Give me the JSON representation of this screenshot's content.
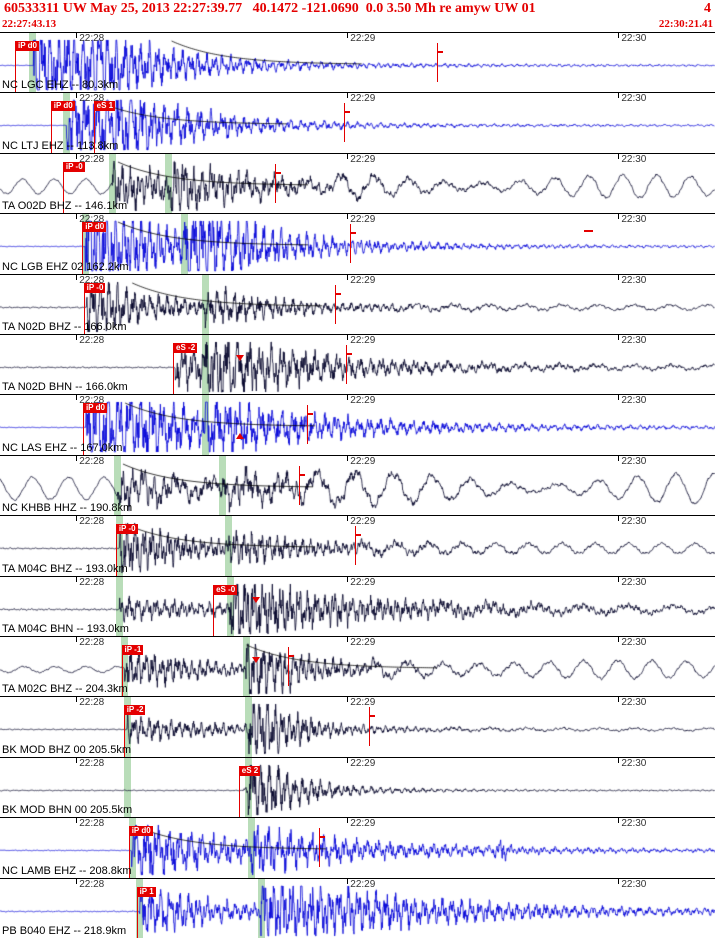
{
  "colors": {
    "header_red": "#e40000",
    "pick_red": "#e40000",
    "band_green": "#b9ddb9",
    "trace_blue": "#0000d8",
    "trace_dark": "#000028"
  },
  "header": {
    "title": "60533311 UW May 25, 2013 22:27:39.77   40.1472 -121.0690  0.0 3.50 Mh re amyw UW 01",
    "right_number": "4",
    "window_start": "22:27:43.13",
    "window_end": "22:30:21.41"
  },
  "minute_marks": [
    {
      "f": 0.1066,
      "label": "22:28"
    },
    {
      "f": 0.4857,
      "label": "22:29"
    },
    {
      "f": 0.8648,
      "label": "22:30"
    }
  ],
  "traces": [
    {
      "label": "NC LGC EHZ -- 80.3km",
      "color": "blue",
      "seed": 3,
      "noise": 0.012,
      "preLP": 0,
      "onset": 0.047,
      "burst": 2.6,
      "decay": 0.085,
      "s_x": 0.12,
      "s_amp": 0.9,
      "s_decay": 0.11,
      "lp": 0,
      "lp_start": 0.5,
      "flags": [
        {
          "t": "iP d0",
          "x": 0.021
        }
      ],
      "amp": [
        0.611
      ],
      "green": [
        0.045
      ],
      "markers": [],
      "curve": 0.24
    },
    {
      "label": "NC LTJ EHZ -- 113.8km",
      "color": "blue",
      "seed": 7,
      "noise": 0.012,
      "preLP": 0,
      "onset": 0.093,
      "burst": 2.1,
      "decay": 0.095,
      "s_x": 0.16,
      "s_amp": 0.7,
      "s_decay": 0.1,
      "lp": 0,
      "lp_start": 0.5,
      "flags": [
        {
          "t": "iP d0",
          "x": 0.071
        },
        {
          "t": "eS 1",
          "x": 0.131
        }
      ],
      "amp": [
        0.481
      ],
      "green": [
        0.093
      ],
      "markers": [],
      "curve": 0.135
    },
    {
      "label": "TA O02D BHZ -- 146.1km",
      "color": "dark",
      "seed": 11,
      "noise": 0.03,
      "preLP": 0.3,
      "onset": 0.157,
      "burst": 0.95,
      "decay": 0.1,
      "s_x": 0.235,
      "s_amp": 0.65,
      "s_decay": 0.12,
      "lp": 0.3,
      "lp_start": 0.47,
      "flags": [
        {
          "t": "iP -0",
          "x": 0.088
        }
      ],
      "amp": [
        0.384
      ],
      "green": [
        0.157,
        0.235
      ],
      "markers": [],
      "curve": 0.165
    },
    {
      "label": "NC LGB EHZ 02 162.2km",
      "color": "blue",
      "seed": 13,
      "noise": 0.012,
      "preLP": 0,
      "onset": 0.119,
      "burst": 2.5,
      "decay": 0.085,
      "s_x": 0.258,
      "s_amp": 1.7,
      "s_decay": 0.1,
      "lp": 0,
      "lp_start": 0.5,
      "flags": [
        {
          "t": "iP d0",
          "x": 0.115
        }
      ],
      "amp": [
        0.489
      ],
      "green": [
        0.119,
        0.258
      ],
      "markers": [
        {
          "type": "dash",
          "x": 0.823
        }
      ],
      "curve": 0.165
    },
    {
      "label": "TA N02D BHZ -- 166.0km",
      "color": "dark",
      "seed": 17,
      "noise": 0.025,
      "preLP": 0,
      "onset": 0.121,
      "burst": 1.25,
      "decay": 0.09,
      "s_x": 0.287,
      "s_amp": 0.55,
      "s_decay": 0.12,
      "lp": 0.1,
      "lp_start": 0.55,
      "flags": [
        {
          "t": "iP -0",
          "x": 0.117
        }
      ],
      "amp": [
        0.468
      ],
      "green": [
        0.287
      ],
      "markers": [],
      "curve": 0.185
    },
    {
      "label": "TA N02D BHN -- 166.0km",
      "color": "dark",
      "seed": 19,
      "noise": 0.025,
      "preLP": 0,
      "onset": 0.245,
      "burst": 0.85,
      "decay": 0.15,
      "s_x": 0.287,
      "s_amp": 0.85,
      "s_decay": 0.15,
      "lp": 0.08,
      "lp_start": 0.6,
      "flags": [
        {
          "t": "eS -2",
          "x": 0.242
        }
      ],
      "amp": [
        0.484
      ],
      "green": [
        0.287
      ],
      "markers": [
        {
          "type": "tri-down",
          "x": 0.335
        }
      ],
      "curve": 0
    },
    {
      "label": "NC LAS EHZ -- 167.0km",
      "color": "blue",
      "seed": 23,
      "noise": 0.012,
      "preLP": 0,
      "onset": 0.12,
      "burst": 2.0,
      "decay": 0.15,
      "s_x": 0.287,
      "s_amp": 0.6,
      "s_decay": 0.15,
      "lp": 0,
      "lp_start": 0.5,
      "flags": [
        {
          "t": "iP d0",
          "x": 0.116
        }
      ],
      "amp": [
        0.43
      ],
      "green": [
        0.287
      ],
      "markers": [
        {
          "type": "tri-up",
          "x": 0.335
        }
      ],
      "curve": 0.175
    },
    {
      "label": "NC KHBB HHZ -- 190.8km",
      "color": "dark",
      "seed": 29,
      "noise": 0.04,
      "preLP": 0.45,
      "onset": 0.164,
      "burst": 0.8,
      "decay": 0.12,
      "s_x": 0.311,
      "s_amp": 0.45,
      "s_decay": 0.12,
      "lp": 0.38,
      "lp_start": 0.42,
      "flags": [],
      "amp": [
        0.418
      ],
      "green": [
        0.164,
        0.311
      ],
      "markers": [],
      "curve": 0.172
    },
    {
      "label": "TA M04C BHZ -- 193.0km",
      "color": "dark",
      "seed": 31,
      "noise": 0.025,
      "preLP": 0,
      "onset": 0.167,
      "burst": 1.1,
      "decay": 0.1,
      "s_x": 0.319,
      "s_amp": 0.5,
      "s_decay": 0.12,
      "lp": 0.2,
      "lp_start": 0.5,
      "flags": [
        {
          "t": "iP -0",
          "x": 0.162
        }
      ],
      "amp": [
        0.496
      ],
      "green": [
        0.167,
        0.319
      ],
      "markers": [],
      "curve": 0.175
    },
    {
      "label": "TA M04C BHN -- 193.0km",
      "color": "dark",
      "seed": 37,
      "noise": 0.03,
      "preLP": 0,
      "onset": 0.167,
      "burst": 0.45,
      "decay": 0.2,
      "s_x": 0.321,
      "s_amp": 1.05,
      "s_decay": 0.18,
      "lp": 0.14,
      "lp_start": 0.6,
      "flags": [
        {
          "t": "eS -0",
          "x": 0.298
        }
      ],
      "amp": [],
      "green": [
        0.167,
        0.321
      ],
      "markers": [
        {
          "type": "tri-down",
          "x": 0.358
        }
      ],
      "curve": 0
    },
    {
      "label": "TA M02C BHZ -- 204.3km",
      "color": "dark",
      "seed": 41,
      "noise": 0.03,
      "preLP": 0.12,
      "onset": 0.174,
      "burst": 0.85,
      "decay": 0.1,
      "s_x": 0.344,
      "s_amp": 1.25,
      "s_decay": 0.07,
      "lp": 0.3,
      "lp_start": 0.52,
      "flags": [
        {
          "t": "iP -1",
          "x": 0.17
        }
      ],
      "amp": [
        0.403
      ],
      "green": [
        0.174,
        0.344
      ],
      "markers": [
        {
          "type": "tri-down",
          "x": 0.358
        }
      ],
      "curve": 0.345
    },
    {
      "label": "BK MOD BHZ 00 205.5km",
      "color": "dark",
      "seed": 43,
      "noise": 0.018,
      "preLP": 0,
      "onset": 0.178,
      "burst": 0.5,
      "decay": 0.14,
      "s_x": 0.347,
      "s_amp": 1.7,
      "s_decay": 0.05,
      "lp": 0.05,
      "lp_start": 0.6,
      "flags": [
        {
          "t": "iP -2",
          "x": 0.173
        }
      ],
      "amp": [
        0.516
      ],
      "green": [
        0.178,
        0.347
      ],
      "markers": [],
      "curve": 0
    },
    {
      "label": "BK MOD BHN 00 205.5km",
      "color": "dark",
      "seed": 47,
      "noise": 0.018,
      "preLP": 0,
      "onset": 0.34,
      "burst": 0.12,
      "decay": 0.1,
      "s_x": 0.347,
      "s_amp": 1.5,
      "s_decay": 0.06,
      "lp": 0,
      "lp_start": 0.5,
      "flags": [
        {
          "t": "eS 2",
          "x": 0.334
        }
      ],
      "amp": [],
      "green": [
        0.178,
        0.347
      ],
      "markers": [],
      "curve": 0
    },
    {
      "label": "NC LAMB EHZ -- 208.8km",
      "color": "blue",
      "seed": 53,
      "noise": 0.015,
      "preLP": 0,
      "onset": 0.184,
      "burst": 1.35,
      "decay": 0.12,
      "s_x": 0.351,
      "s_amp": 0.55,
      "s_decay": 0.2,
      "lp": 0,
      "lp_start": 0.5,
      "bump": 0.7,
      "flags": [
        {
          "t": "iP d0",
          "x": 0.18
        }
      ],
      "amp": [
        0.446
      ],
      "green": [
        0.184,
        0.351
      ],
      "markers": [],
      "curve": 0.19
    },
    {
      "label": "PB B040 EHZ -- 218.9km",
      "color": "blue",
      "seed": 59,
      "noise": 0.02,
      "preLP": 0,
      "onset": 0.195,
      "burst": 1.05,
      "decay": 0.11,
      "s_x": 0.365,
      "s_amp": 1.25,
      "s_decay": 0.22,
      "lp": 0,
      "lp_start": 0.5,
      "flags": [
        {
          "t": "iP 1",
          "x": 0.191
        }
      ],
      "amp": [],
      "green": [
        0.195,
        0.365
      ],
      "markers": [],
      "curve": 0
    }
  ]
}
